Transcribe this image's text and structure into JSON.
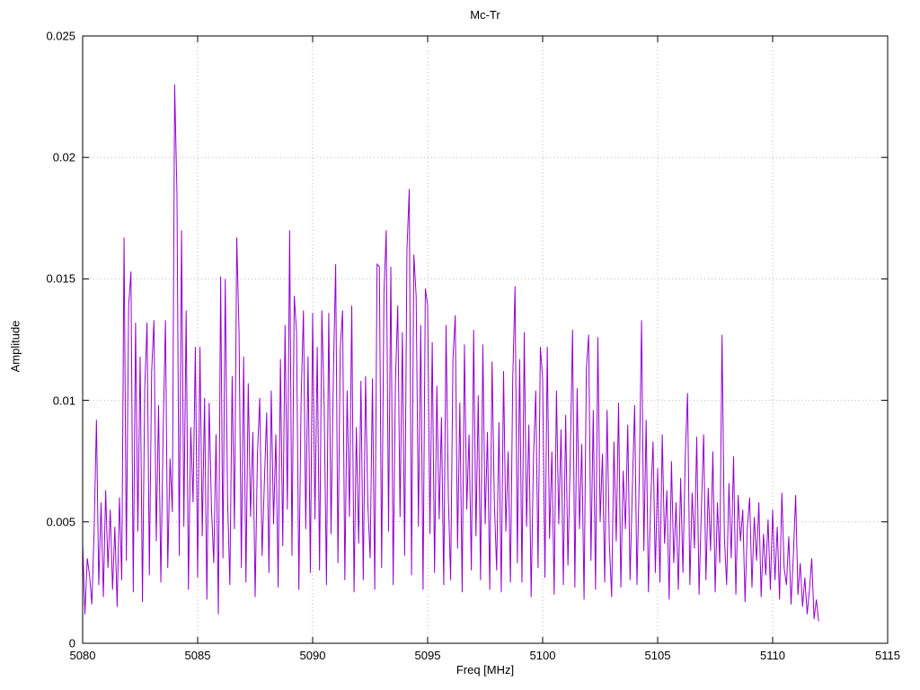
{
  "chart_data": {
    "type": "line",
    "title": "Mc-Tr",
    "xlabel": "Freq [MHz]",
    "ylabel": "Amplitude",
    "xlim": [
      5080,
      5115
    ],
    "ylim": [
      0,
      0.025
    ],
    "xticks": [
      5080,
      5085,
      5090,
      5095,
      5100,
      5105,
      5110,
      5115
    ],
    "xtick_labels": [
      "5080",
      "5085",
      "5090",
      "5095",
      "5100",
      "5105",
      "5110",
      "5115"
    ],
    "yticks": [
      0,
      0.005,
      0.01,
      0.015,
      0.02,
      0.025
    ],
    "ytick_labels": [
      "0",
      "0.005",
      "0.01",
      "0.015",
      "0.02",
      "0.025"
    ],
    "grid": "dotted",
    "legend": "none",
    "line_color": "#9400d3",
    "x_start": 5080.0,
    "x_step": 0.1,
    "values": [
      0.0041,
      0.0012,
      0.0035,
      0.0028,
      0.0016,
      0.0047,
      0.0092,
      0.0024,
      0.0058,
      0.0019,
      0.0063,
      0.0031,
      0.0055,
      0.0022,
      0.0048,
      0.0015,
      0.006,
      0.0026,
      0.0167,
      0.0034,
      0.0139,
      0.0153,
      0.0021,
      0.0132,
      0.0046,
      0.0118,
      0.0017,
      0.0105,
      0.0132,
      0.0028,
      0.0112,
      0.0133,
      0.0042,
      0.0098,
      0.0025,
      0.0087,
      0.0133,
      0.0031,
      0.0076,
      0.0054,
      0.023,
      0.0185,
      0.0036,
      0.017,
      0.0048,
      0.0137,
      0.0022,
      0.0089,
      0.0058,
      0.0122,
      0.0027,
      0.0122,
      0.0044,
      0.0101,
      0.0018,
      0.0099,
      0.0056,
      0.0033,
      0.0086,
      0.0012,
      0.0151,
      0.0035,
      0.015,
      0.0059,
      0.0024,
      0.011,
      0.0047,
      0.0167,
      0.0128,
      0.0031,
      0.0118,
      0.0025,
      0.0107,
      0.0052,
      0.0087,
      0.0019,
      0.0078,
      0.0101,
      0.0036,
      0.0066,
      0.0095,
      0.0029,
      0.0104,
      0.0049,
      0.0086,
      0.0023,
      0.0117,
      0.004,
      0.0131,
      0.0055,
      0.017,
      0.0036,
      0.0143,
      0.0128,
      0.0022,
      0.0101,
      0.0137,
      0.0047,
      0.0118,
      0.0029,
      0.0136,
      0.0051,
      0.0122,
      0.003,
      0.0137,
      0.0098,
      0.0024,
      0.0136,
      0.0045,
      0.011,
      0.0156,
      0.0033,
      0.0121,
      0.0137,
      0.0026,
      0.0104,
      0.0052,
      0.0139,
      0.0021,
      0.0089,
      0.0041,
      0.0108,
      0.0026,
      0.011,
      0.0057,
      0.0035,
      0.0109,
      0.0022,
      0.0156,
      0.0155,
      0.0031,
      0.0144,
      0.017,
      0.0046,
      0.0155,
      0.0024,
      0.0108,
      0.0139,
      0.0052,
      0.0128,
      0.0036,
      0.0162,
      0.0187,
      0.0028,
      0.016,
      0.0143,
      0.0048,
      0.0131,
      0.0022,
      0.0146,
      0.0139,
      0.0045,
      0.0124,
      0.0029,
      0.0106,
      0.0051,
      0.0093,
      0.0024,
      0.0131,
      0.006,
      0.0026,
      0.0117,
      0.0135,
      0.0039,
      0.0099,
      0.0021,
      0.0123,
      0.0055,
      0.0086,
      0.003,
      0.0129,
      0.0044,
      0.0102,
      0.0026,
      0.0123,
      0.0049,
      0.0087,
      0.0022,
      0.0116,
      0.0058,
      0.003,
      0.0091,
      0.0021,
      0.0112,
      0.0046,
      0.0079,
      0.0025,
      0.0109,
      0.0147,
      0.0033,
      0.0117,
      0.0025,
      0.0128,
      0.0048,
      0.009,
      0.0019,
      0.0076,
      0.0104,
      0.0031,
      0.0122,
      0.0109,
      0.0027,
      0.0122,
      0.0043,
      0.0079,
      0.002,
      0.0104,
      0.0049,
      0.0088,
      0.0024,
      0.0094,
      0.0032,
      0.0077,
      0.0129,
      0.0023,
      0.0105,
      0.0047,
      0.0082,
      0.0018,
      0.0113,
      0.0127,
      0.0034,
      0.0096,
      0.0022,
      0.0126,
      0.005,
      0.0078,
      0.0025,
      0.0096,
      0.0041,
      0.0019,
      0.0083,
      0.0042,
      0.0099,
      0.0023,
      0.0071,
      0.0047,
      0.009,
      0.0026,
      0.0064,
      0.0098,
      0.0024,
      0.0068,
      0.0133,
      0.0038,
      0.0092,
      0.0021,
      0.0059,
      0.0083,
      0.0029,
      0.0072,
      0.0025,
      0.0086,
      0.0041,
      0.0063,
      0.0018,
      0.0075,
      0.0033,
      0.0058,
      0.0022,
      0.0068,
      0.0029,
      0.0077,
      0.0103,
      0.0024,
      0.0062,
      0.0039,
      0.0085,
      0.002,
      0.0055,
      0.0086,
      0.0026,
      0.0064,
      0.0038,
      0.0079,
      0.0021,
      0.0058,
      0.0033,
      0.0127,
      0.0044,
      0.0024,
      0.0066,
      0.0035,
      0.0077,
      0.002,
      0.0061,
      0.0042,
      0.0055,
      0.0017,
      0.0048,
      0.006,
      0.0023,
      0.0052,
      0.0034,
      0.0058,
      0.0019,
      0.0045,
      0.0028,
      0.0051,
      0.0022,
      0.0055,
      0.0026,
      0.0048,
      0.0018,
      0.0062,
      0.0031,
      0.0024,
      0.0044,
      0.0016,
      0.0036,
      0.0061,
      0.002,
      0.0033,
      0.0015,
      0.0027,
      0.0012,
      0.0022,
      0.0035,
      0.001,
      0.0018,
      0.0009
    ]
  }
}
